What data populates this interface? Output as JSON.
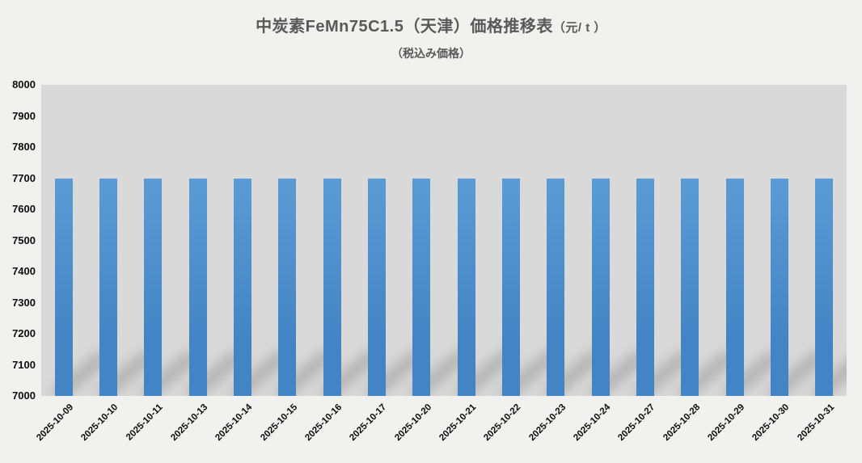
{
  "title": {
    "main": "中炭素FeMn75C1.5（天津）価格推移表",
    "unit": "（元/ t ）",
    "subtitle": "（税込み価格）"
  },
  "chart_data": {
    "type": "bar",
    "title": "中炭素FeMn75C1.5（天津）価格推移表（元/ t ）",
    "subtitle": "（税込み価格）",
    "categories": [
      "2025-10-09",
      "2025-10-10",
      "2025-10-11",
      "2025-10-13",
      "2025-10-14",
      "2025-10-15",
      "2025-10-16",
      "2025-10-17",
      "2025-10-20",
      "2025-10-21",
      "2025-10-22",
      "2025-10-23",
      "2025-10-24",
      "2025-10-27",
      "2025-10-28",
      "2025-10-29",
      "2025-10-30",
      "2025-10-31"
    ],
    "values": [
      7700,
      7700,
      7700,
      7700,
      7700,
      7700,
      7700,
      7700,
      7700,
      7700,
      7700,
      7700,
      7700,
      7700,
      7700,
      7700,
      7700,
      7700
    ],
    "xlabel": "",
    "ylabel": "",
    "ylim": [
      7000,
      8000
    ],
    "yticks": [
      8000,
      7900,
      7800,
      7700,
      7600,
      7500,
      7400,
      7300,
      7200,
      7100,
      7000
    ],
    "grid": false,
    "legend": null,
    "colors": {
      "bar_top": "#5b9bd5",
      "bar_bottom": "#4384c4",
      "plot_bg": "#d9d9d9",
      "page_bg": "#f1f1f0",
      "title_text": "#595959",
      "axis_text": "#0d0d0d",
      "shadow": "rgba(115,115,115,0.45)"
    }
  }
}
